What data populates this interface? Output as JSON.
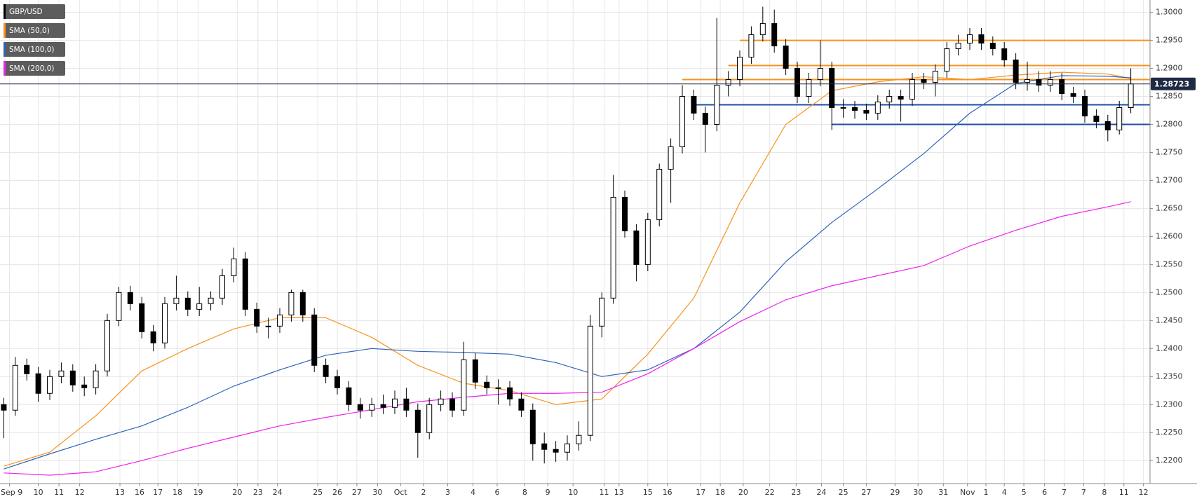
{
  "chart_data": {
    "type": "candlestick",
    "series": [
      {
        "name": "GBP/USD",
        "color": "#000000",
        "open": [
          1.23,
          1.229,
          1.237,
          1.2355,
          1.232,
          1.235,
          1.236,
          1.2335,
          1.233,
          1.236,
          1.245,
          1.25,
          1.248,
          1.243,
          1.241,
          1.248,
          1.249,
          1.247,
          1.248,
          1.249,
          1.253,
          1.256,
          1.247,
          1.244,
          1.244,
          1.246,
          1.25,
          1.246,
          1.237,
          1.235,
          1.233,
          1.23,
          1.229,
          1.23,
          1.2295,
          1.231,
          1.229,
          1.225,
          1.23,
          1.231,
          1.229,
          1.238,
          1.234,
          1.233,
          1.233,
          1.231,
          1.229,
          1.223,
          1.222,
          1.2215,
          1.223,
          1.2245,
          1.244,
          1.249,
          1.267,
          1.261,
          1.255,
          1.263,
          1.272,
          1.276,
          1.285,
          1.282,
          1.28,
          1.287,
          1.288,
          1.292,
          1.296,
          1.298,
          1.294,
          1.29,
          1.285,
          1.288,
          1.29,
          1.283,
          1.283,
          1.2825,
          1.282,
          1.284,
          1.285,
          1.2845,
          1.288,
          1.2875,
          1.2895,
          1.2935,
          1.2945,
          1.296,
          1.2945,
          1.2935,
          1.2915,
          1.2875,
          1.288,
          1.287,
          1.288,
          1.2855,
          1.285,
          1.2815,
          1.2805,
          1.279,
          1.283
        ],
        "high": [
          1.2312,
          1.2385,
          1.2382,
          1.2367,
          1.2362,
          1.2375,
          1.2372,
          1.235,
          1.2372,
          1.2462,
          1.251,
          1.2512,
          1.2492,
          1.2442,
          1.2492,
          1.253,
          1.2502,
          1.251,
          1.2502,
          1.2542,
          1.258,
          1.2572,
          1.2482,
          1.2455,
          1.2472,
          1.2505,
          1.2505,
          1.2472,
          1.2382,
          1.2362,
          1.2342,
          1.2312,
          1.2312,
          1.2318,
          1.2325,
          1.233,
          1.2302,
          1.2312,
          1.2325,
          1.2322,
          1.2412,
          1.2392,
          1.2352,
          1.2345,
          1.2342,
          1.2322,
          1.2302,
          1.225,
          1.2235,
          1.2245,
          1.227,
          1.246,
          1.25,
          1.271,
          1.2682,
          1.2622,
          1.2642,
          1.273,
          1.2775,
          1.287,
          1.2862,
          1.2832,
          1.299,
          1.2895,
          1.2932,
          1.2975,
          1.301,
          1.3005,
          1.2952,
          1.2912,
          1.2892,
          1.295,
          1.2912,
          1.2845,
          1.2842,
          1.2837,
          1.2852,
          1.2862,
          1.2862,
          1.2892,
          1.2892,
          1.2907,
          1.2947,
          1.296,
          1.2972,
          1.2972,
          1.2957,
          1.2947,
          1.2927,
          1.2912,
          1.2895,
          1.2895,
          1.2892,
          1.2867,
          1.2862,
          1.2827,
          1.2817,
          1.2842,
          1.29
        ],
        "low": [
          1.224,
          1.228,
          1.2343,
          1.2305,
          1.2308,
          1.2338,
          1.2323,
          1.2315,
          1.2318,
          1.235,
          1.244,
          1.2468,
          1.2418,
          1.2395,
          1.24,
          1.2468,
          1.2458,
          1.2458,
          1.2468,
          1.2478,
          1.2518,
          1.2458,
          1.2428,
          1.2418,
          1.2428,
          1.2448,
          1.2448,
          1.2358,
          1.2338,
          1.2318,
          1.2288,
          1.2275,
          1.2278,
          1.2283,
          1.2283,
          1.2278,
          1.2205,
          1.2238,
          1.2288,
          1.2278,
          1.228,
          1.2328,
          1.2318,
          1.23,
          1.2298,
          1.2278,
          1.22,
          1.2195,
          1.2198,
          1.22,
          1.2218,
          1.2235,
          1.242,
          1.248,
          1.2598,
          1.252,
          1.2538,
          1.2618,
          1.266,
          1.2748,
          1.2808,
          1.275,
          1.2788,
          1.285,
          1.2868,
          1.2908,
          1.2948,
          1.2928,
          1.2888,
          1.2838,
          1.2838,
          1.2868,
          1.279,
          1.2812,
          1.281,
          1.2808,
          1.2808,
          1.2828,
          1.2805,
          1.2833,
          1.2863,
          1.285,
          1.2883,
          1.2923,
          1.2933,
          1.2933,
          1.2923,
          1.2903,
          1.2863,
          1.286,
          1.2858,
          1.2858,
          1.2843,
          1.2838,
          1.2803,
          1.2793,
          1.277,
          1.2782,
          1.282
        ],
        "close": [
          1.229,
          1.237,
          1.2355,
          1.232,
          1.235,
          1.236,
          1.2335,
          1.233,
          1.236,
          1.245,
          1.25,
          1.248,
          1.243,
          1.241,
          1.248,
          1.249,
          1.247,
          1.248,
          1.249,
          1.253,
          1.256,
          1.247,
          1.244,
          1.244,
          1.246,
          1.25,
          1.246,
          1.237,
          1.235,
          1.233,
          1.23,
          1.229,
          1.23,
          1.2295,
          1.231,
          1.229,
          1.225,
          1.23,
          1.231,
          1.229,
          1.238,
          1.234,
          1.233,
          1.233,
          1.231,
          1.229,
          1.223,
          1.222,
          1.2215,
          1.223,
          1.2245,
          1.244,
          1.249,
          1.267,
          1.261,
          1.255,
          1.263,
          1.272,
          1.276,
          1.285,
          1.282,
          1.28,
          1.287,
          1.288,
          1.292,
          1.296,
          1.298,
          1.294,
          1.29,
          1.285,
          1.288,
          1.29,
          1.283,
          1.283,
          1.2825,
          1.282,
          1.284,
          1.285,
          1.2845,
          1.288,
          1.2875,
          1.2895,
          1.2935,
          1.2945,
          1.296,
          1.2945,
          1.2935,
          1.2915,
          1.2875,
          1.288,
          1.287,
          1.288,
          1.2855,
          1.285,
          1.2815,
          1.2805,
          1.279,
          1.283,
          1.28723
        ]
      }
    ],
    "indicators": [
      {
        "name": "SMA (50,0)",
        "color": "#f7931e",
        "x": [
          0,
          4,
          8,
          12,
          16,
          20,
          24,
          28,
          32,
          36,
          40,
          44,
          48,
          52,
          56,
          60,
          64,
          68,
          72,
          76,
          80,
          84,
          88,
          92,
          96,
          98
        ],
        "values": [
          1.219,
          1.2215,
          1.228,
          1.236,
          1.24,
          1.2435,
          1.2455,
          1.2455,
          1.242,
          1.237,
          1.2338,
          1.2325,
          1.23,
          1.231,
          1.239,
          1.249,
          1.266,
          1.28,
          1.286,
          1.2876,
          1.2885,
          1.288,
          1.2888,
          1.2893,
          1.289,
          1.2882
        ]
      },
      {
        "name": "SMA (100,0)",
        "color": "#2f63b8",
        "x": [
          0,
          4,
          8,
          12,
          16,
          20,
          24,
          28,
          32,
          36,
          40,
          44,
          48,
          52,
          56,
          60,
          64,
          68,
          72,
          76,
          80,
          84,
          88,
          92,
          96,
          98
        ],
        "values": [
          1.2185,
          1.2212,
          1.2238,
          1.2262,
          1.2295,
          1.2333,
          1.2362,
          1.2388,
          1.24,
          1.2395,
          1.2393,
          1.239,
          1.2375,
          1.235,
          1.2362,
          1.24,
          1.2465,
          1.2555,
          1.2625,
          1.2685,
          1.2748,
          1.282,
          1.2873,
          1.2887,
          1.2886,
          1.2883
        ]
      },
      {
        "name": "SMA (200,0)",
        "color": "#ee22ee",
        "x": [
          0,
          4,
          8,
          12,
          16,
          20,
          24,
          28,
          32,
          36,
          40,
          44,
          48,
          52,
          56,
          60,
          64,
          68,
          72,
          76,
          80,
          84,
          88,
          92,
          96,
          98
        ],
        "values": [
          1.2178,
          1.2174,
          1.218,
          1.22,
          1.2222,
          1.2242,
          1.2262,
          1.2277,
          1.2291,
          1.2305,
          1.2313,
          1.232,
          1.232,
          1.2322,
          1.2355,
          1.24,
          1.2448,
          1.2487,
          1.2512,
          1.253,
          1.2548,
          1.2583,
          1.2611,
          1.2636,
          1.2653,
          1.2662
        ]
      }
    ],
    "levels": [
      {
        "value": 1.295,
        "x0": 64,
        "color": "#f7931e"
      },
      {
        "value": 1.2905,
        "x0": 63,
        "color": "#f7931e"
      },
      {
        "value": 1.288,
        "x0": 59,
        "color": "#f7931e"
      },
      {
        "value": 1.2835,
        "x0": 60,
        "color": "#1f4fa0"
      },
      {
        "value": 1.28,
        "x0": 72,
        "color": "#1f4fa0"
      }
    ],
    "last_price": 1.28723,
    "xlim": [
      -0.33,
      99.67
    ],
    "ylim": [
      1.2159,
      1.3022
    ],
    "xticks": [
      {
        "value": 0.5,
        "label": "Sep 9"
      },
      {
        "value": 3,
        "label": "10"
      },
      {
        "value": 4.8,
        "label": "11"
      },
      {
        "value": 6.6,
        "label": "12"
      },
      {
        "value": 10.1,
        "label": "13"
      },
      {
        "value": 11.8,
        "label": "16"
      },
      {
        "value": 13.4,
        "label": "17"
      },
      {
        "value": 15.1,
        "label": "18"
      },
      {
        "value": 16.9,
        "label": "19"
      },
      {
        "value": 20.3,
        "label": "20"
      },
      {
        "value": 22.1,
        "label": "23"
      },
      {
        "value": 23.8,
        "label": "24"
      },
      {
        "value": 27.3,
        "label": "25"
      },
      {
        "value": 29,
        "label": "26"
      },
      {
        "value": 30.7,
        "label": "27"
      },
      {
        "value": 32.5,
        "label": "30"
      },
      {
        "value": 34.5,
        "label": "Oct"
      },
      {
        "value": 36.5,
        "label": "2"
      },
      {
        "value": 38.6,
        "label": "3"
      },
      {
        "value": 40.8,
        "label": "4"
      },
      {
        "value": 42.9,
        "label": "6"
      },
      {
        "value": 45.3,
        "label": "8"
      },
      {
        "value": 47.3,
        "label": "9"
      },
      {
        "value": 49.5,
        "label": "10"
      },
      {
        "value": 52.2,
        "label": "11"
      },
      {
        "value": 53.5,
        "label": "13"
      },
      {
        "value": 56,
        "label": "15"
      },
      {
        "value": 57.7,
        "label": "16"
      },
      {
        "value": 60.6,
        "label": "17"
      },
      {
        "value": 62.3,
        "label": "18"
      },
      {
        "value": 64.3,
        "label": "20"
      },
      {
        "value": 66.6,
        "label": "22"
      },
      {
        "value": 68.9,
        "label": "23"
      },
      {
        "value": 71.1,
        "label": "24"
      },
      {
        "value": 73,
        "label": "25"
      },
      {
        "value": 75,
        "label": "27"
      },
      {
        "value": 77.5,
        "label": "29"
      },
      {
        "value": 79.5,
        "label": "30"
      },
      {
        "value": 81.7,
        "label": "31"
      },
      {
        "value": 83.8,
        "label": "Nov"
      },
      {
        "value": 85.4,
        "label": "1"
      },
      {
        "value": 87,
        "label": "4"
      },
      {
        "value": 88.7,
        "label": "5"
      },
      {
        "value": 90.5,
        "label": "6"
      },
      {
        "value": 92.2,
        "label": "7"
      },
      {
        "value": 93.9,
        "label": "7"
      },
      {
        "value": 95.7,
        "label": "8"
      },
      {
        "value": 97.4,
        "label": "11"
      },
      {
        "value": 99.1,
        "label": "12"
      }
    ],
    "yticks": [
      {
        "value": 1.22,
        "label": "1.2200"
      },
      {
        "value": 1.225,
        "label": "1.2250"
      },
      {
        "value": 1.23,
        "label": "1.2300"
      },
      {
        "value": 1.235,
        "label": "1.2350"
      },
      {
        "value": 1.24,
        "label": "1.2400"
      },
      {
        "value": 1.245,
        "label": "1.2450"
      },
      {
        "value": 1.25,
        "label": "1.2500"
      },
      {
        "value": 1.255,
        "label": "1.2550"
      },
      {
        "value": 1.26,
        "label": "1.2600"
      },
      {
        "value": 1.265,
        "label": "1.2650"
      },
      {
        "value": 1.27,
        "label": "1.2700"
      },
      {
        "value": 1.275,
        "label": "1.2750"
      },
      {
        "value": 1.28,
        "label": "1.2800"
      },
      {
        "value": 1.285,
        "label": "1.2850"
      },
      {
        "value": 1.29,
        "label": "1.2900"
      },
      {
        "value": 1.295,
        "label": "1.2950"
      },
      {
        "value": 1.3,
        "label": "1.3000"
      }
    ],
    "grid": true
  }
}
